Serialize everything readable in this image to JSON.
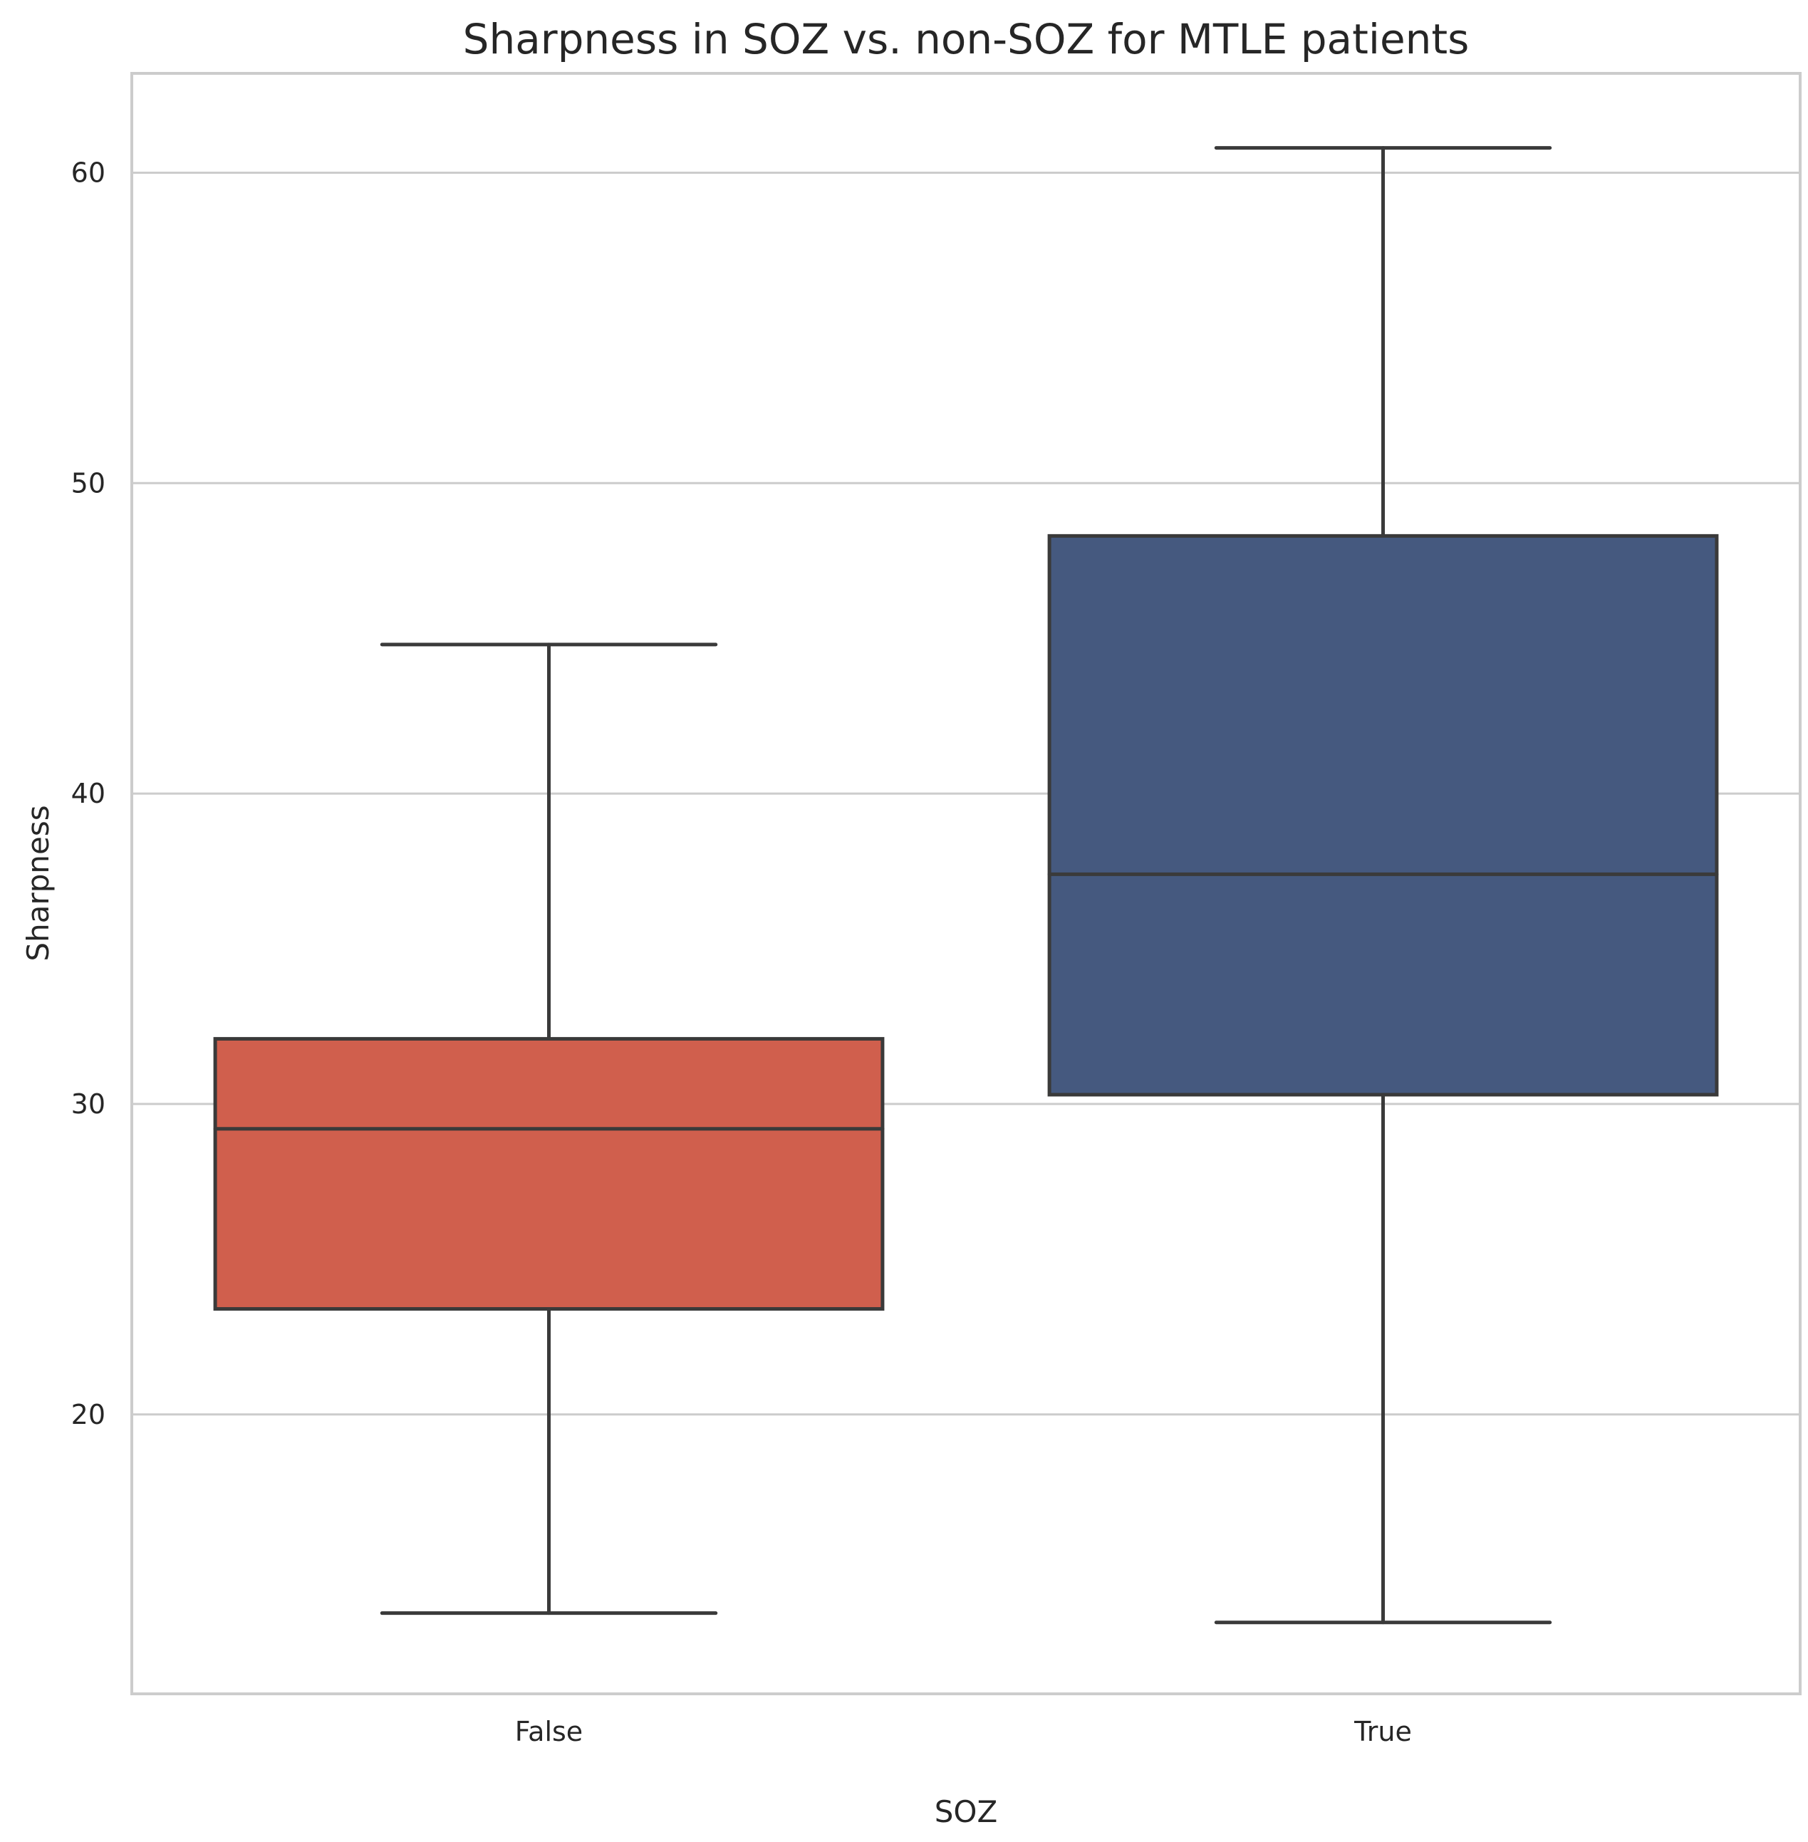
{
  "chart_data": {
    "type": "box",
    "title": "Sharpness in SOZ vs. non-SOZ for MTLE patients",
    "xlabel": "SOZ",
    "ylabel": "Sharpness",
    "ylim": [
      11.0,
      63.2
    ],
    "yticks": [
      20,
      30,
      40,
      50,
      60
    ],
    "grid": true,
    "categories": [
      "False",
      "True"
    ],
    "boxes": [
      {
        "category": "False",
        "whisker_low": 13.6,
        "q1": 23.4,
        "median": 29.2,
        "q3": 32.1,
        "whisker_high": 44.8,
        "color": "#d05f4d"
      },
      {
        "category": "True",
        "whisker_low": 13.3,
        "q1": 30.3,
        "median": 37.4,
        "q3": 48.3,
        "whisker_high": 60.8,
        "color": "#45597f"
      }
    ]
  }
}
